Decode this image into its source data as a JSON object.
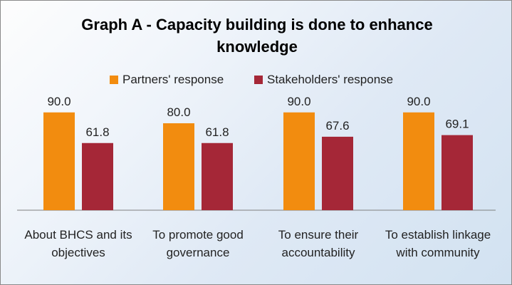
{
  "chart_data": {
    "type": "bar",
    "title": "Graph A - Capacity building is done to enhance knowledge",
    "categories": [
      "About BHCS and its objectives",
      "To promote good governance",
      "To ensure their accountability",
      "To establish linkage with community"
    ],
    "category_lines": [
      [
        "About BHCS and its",
        "objectives"
      ],
      [
        "To promote good",
        "governance"
      ],
      [
        "To ensure their",
        "accountability"
      ],
      [
        "To establish linkage",
        "with community"
      ]
    ],
    "series": [
      {
        "name": "Partners' response",
        "color": "#f28c0f",
        "values": [
          90.0,
          80.0,
          90.0,
          90.0
        ]
      },
      {
        "name": "Stakeholders' response",
        "color": "#a52737",
        "values": [
          61.8,
          61.8,
          67.6,
          69.1
        ]
      }
    ],
    "ylim": [
      0,
      100
    ],
    "grid": false,
    "legend_position": "top-center",
    "data_labels": true,
    "value_format_decimals": 1
  }
}
